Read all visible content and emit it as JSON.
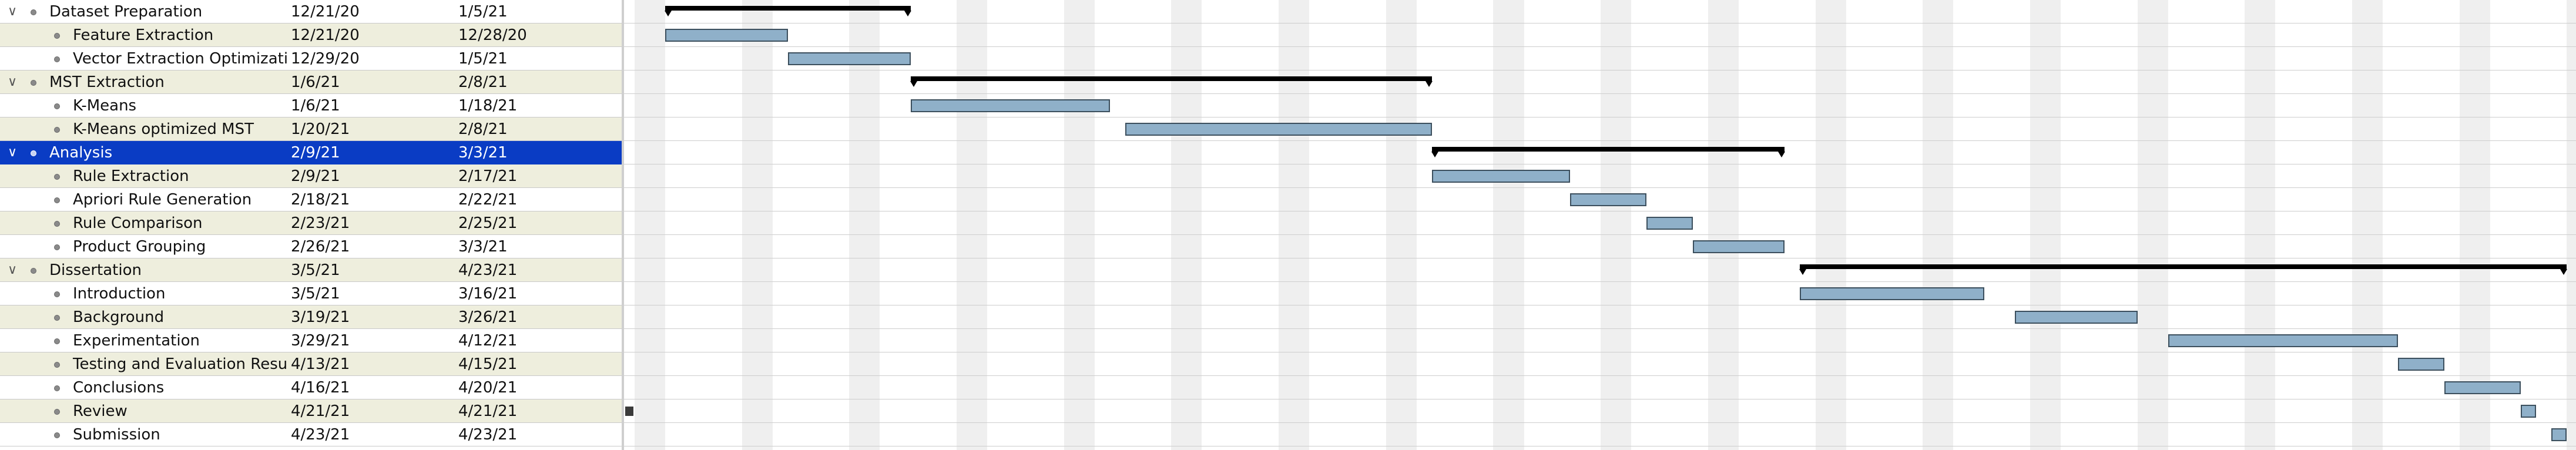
{
  "tasks": [
    {
      "name": "Dataset Preparation",
      "start": "12/21/20",
      "end": "1/5/21",
      "level": 0,
      "expanded": true
    },
    {
      "name": "Feature Extraction",
      "start": "12/21/20",
      "end": "12/28/20",
      "level": 1
    },
    {
      "name": "Vector Extraction Optimization",
      "start": "12/29/20",
      "end": "1/5/21",
      "level": 1
    },
    {
      "name": "MST Extraction",
      "start": "1/6/21",
      "end": "2/8/21",
      "level": 0,
      "expanded": true
    },
    {
      "name": "K-Means",
      "start": "1/6/21",
      "end": "1/18/21",
      "level": 1
    },
    {
      "name": "K-Means optimized MST",
      "start": "1/20/21",
      "end": "2/8/21",
      "level": 1
    },
    {
      "name": "Analysis",
      "start": "2/9/21",
      "end": "3/3/21",
      "level": 0,
      "expanded": true,
      "selected": true
    },
    {
      "name": "Rule Extraction",
      "start": "2/9/21",
      "end": "2/17/21",
      "level": 1
    },
    {
      "name": "Apriori Rule Generation",
      "start": "2/18/21",
      "end": "2/22/21",
      "level": 1
    },
    {
      "name": "Rule Comparison",
      "start": "2/23/21",
      "end": "2/25/21",
      "level": 1
    },
    {
      "name": "Product Grouping",
      "start": "2/26/21",
      "end": "3/3/21",
      "level": 1
    },
    {
      "name": "Dissertation",
      "start": "3/5/21",
      "end": "4/23/21",
      "level": 0,
      "expanded": true
    },
    {
      "name": "Introduction",
      "start": "3/5/21",
      "end": "3/16/21",
      "level": 1
    },
    {
      "name": "Background",
      "start": "3/19/21",
      "end": "3/26/21",
      "level": 1
    },
    {
      "name": "Experimentation",
      "start": "3/29/21",
      "end": "4/12/21",
      "level": 1
    },
    {
      "name": "Testing and Evaluation Results",
      "start": "4/13/21",
      "end": "4/15/21",
      "level": 1
    },
    {
      "name": "Conclusions",
      "start": "4/16/21",
      "end": "4/20/21",
      "level": 1
    },
    {
      "name": "Review",
      "start": "4/21/21",
      "end": "4/21/21",
      "level": 1
    },
    {
      "name": "Submission",
      "start": "4/23/21",
      "end": "4/23/21",
      "level": 1
    }
  ],
  "icons": {
    "expanded": "chevron-down-icon",
    "bullet": "task-bullet-icon",
    "milestone": "milestone-marker-icon"
  },
  "colors": {
    "selection": "#0a3cc4",
    "alt_row": "#eeeedd",
    "task_bar": "#8fb0c9",
    "task_bar_border": "#3c4f5d",
    "summary_bar": "#000000",
    "weekend": "#efefef"
  }
}
